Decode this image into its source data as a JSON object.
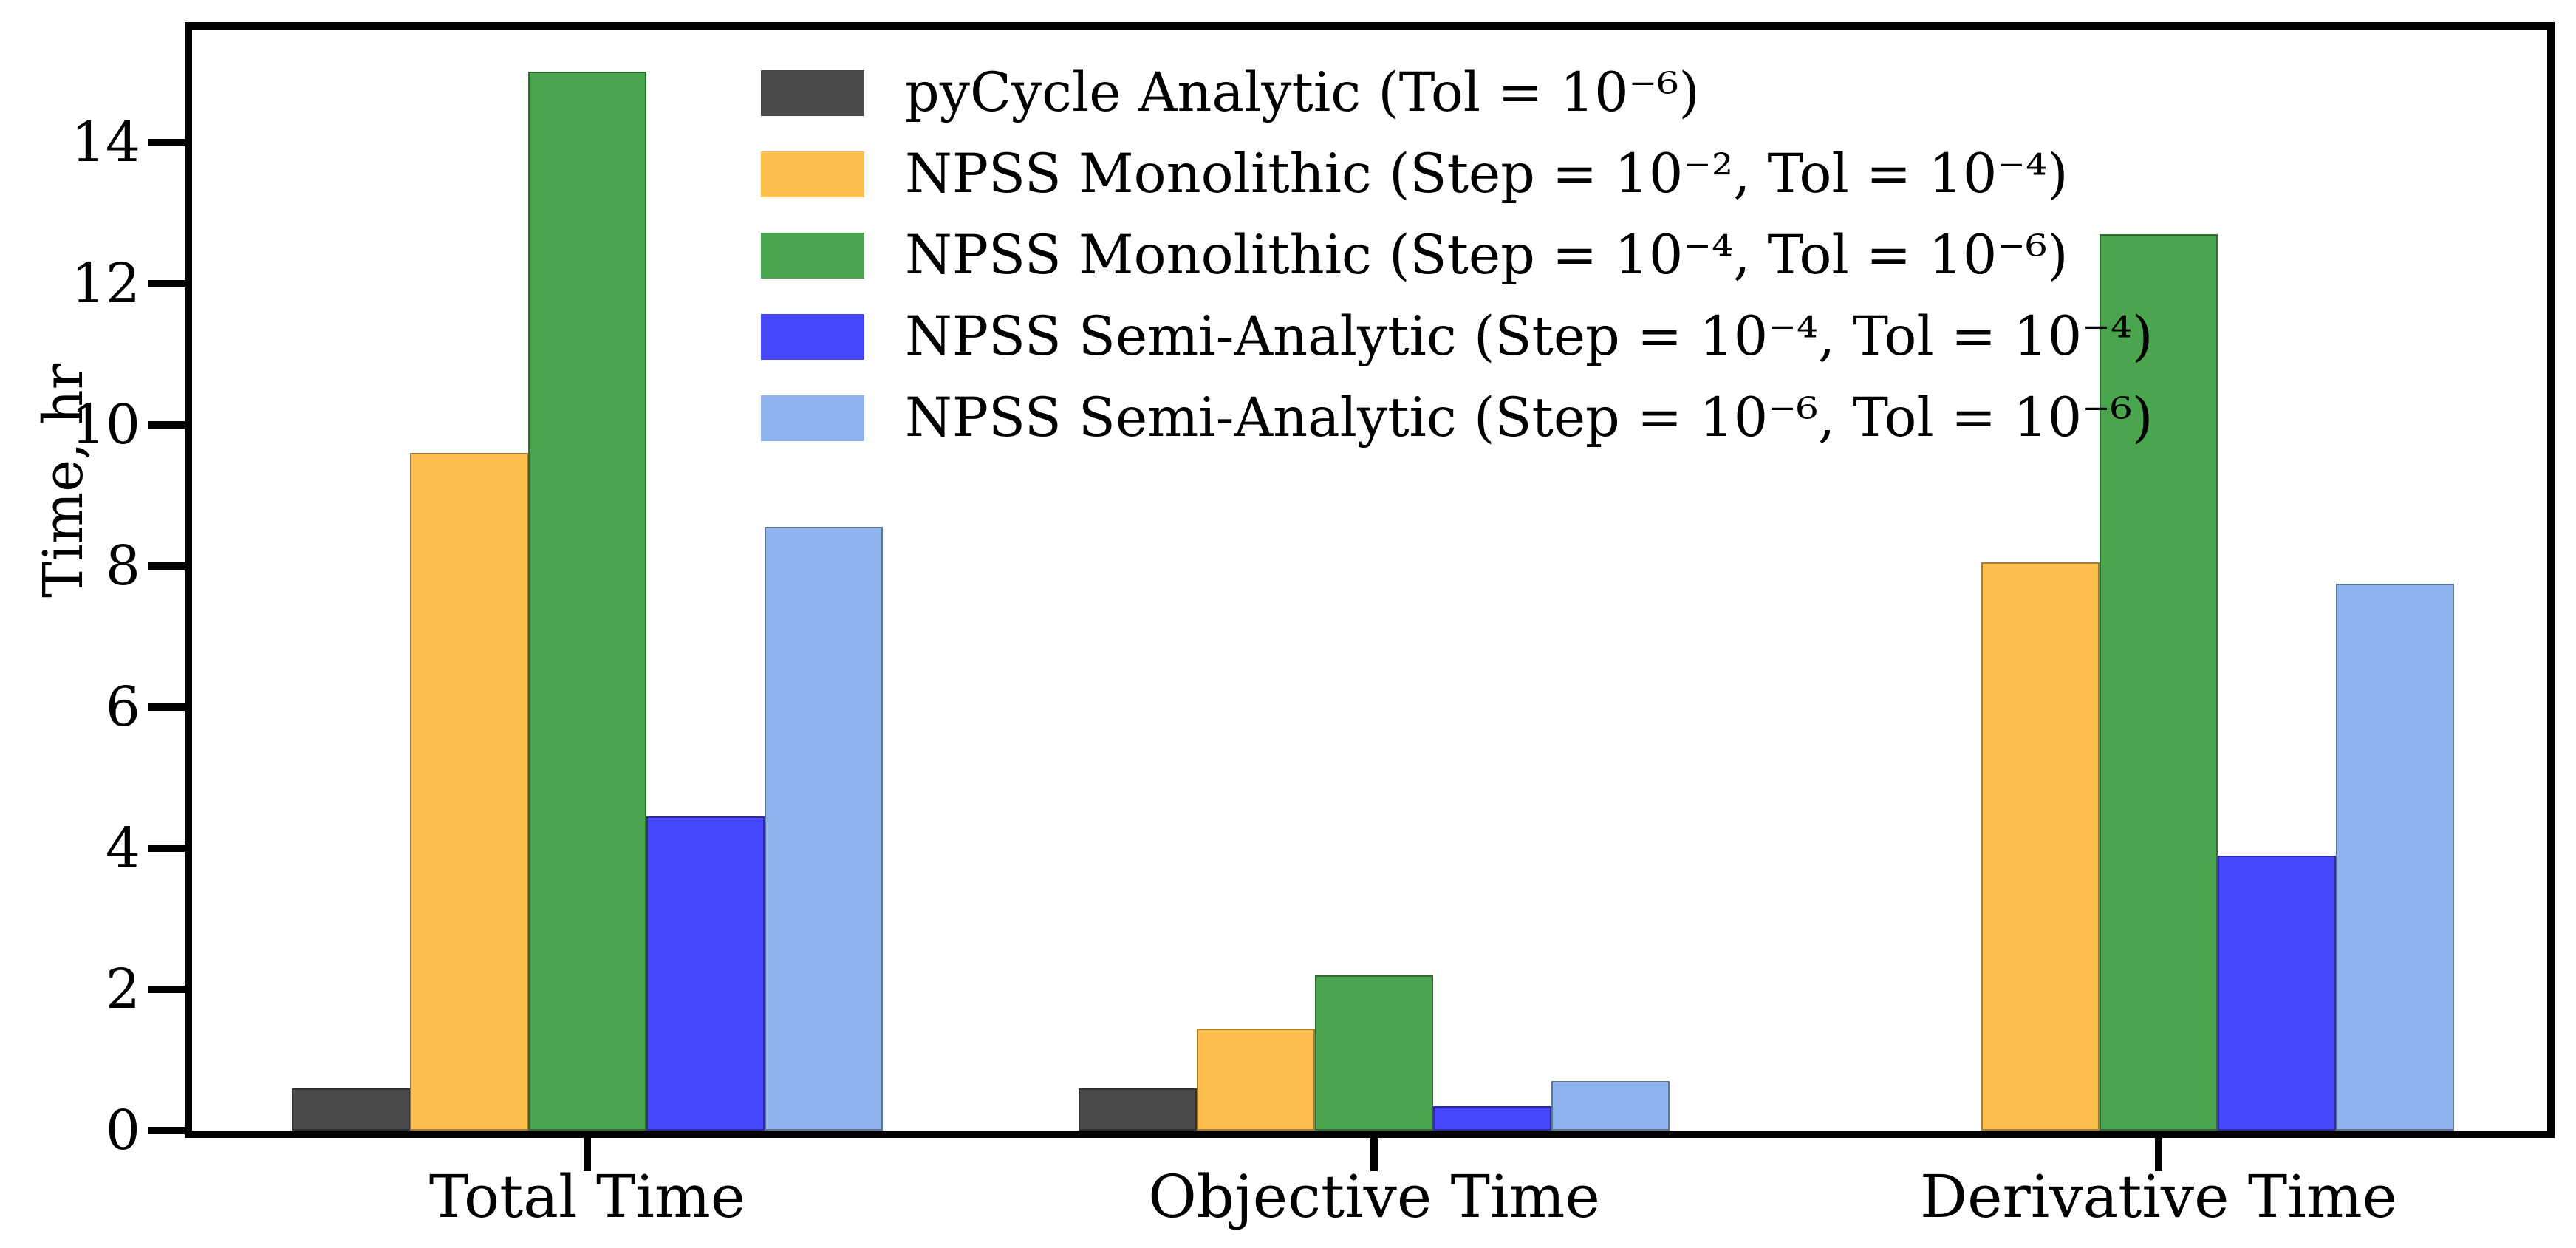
{
  "figure": {
    "background": "#ffffff",
    "text_color": "#000000"
  },
  "chart_data": {
    "type": "bar",
    "title": "",
    "xlabel": "",
    "ylabel": "Time, hr",
    "categories": [
      "Total Time",
      "Objective Time",
      "Derivative Time"
    ],
    "series": [
      {
        "name": "pyCycle Analytic (Tol = 10⁻⁶)",
        "color": "#4a4a4a",
        "values": [
          0.6,
          0.6,
          0
        ]
      },
      {
        "name": "NPSS Monolithic (Step = 10⁻², Tol = 10⁻⁴)",
        "color": "#fdbf4d",
        "values": [
          9.6,
          1.45,
          8.05
        ]
      },
      {
        "name": "NPSS Monolithic (Step = 10⁻⁴, Tol = 10⁻⁶)",
        "color": "#4aa54e",
        "values": [
          15.0,
          2.2,
          12.7
        ]
      },
      {
        "name": "NPSS Semi-Analytic (Step = 10⁻⁴, Tol = 10⁻⁴)",
        "color": "#4646fa",
        "values": [
          4.45,
          0.35,
          3.9
        ]
      },
      {
        "name": "NPSS Semi-Analytic (Step = 10⁻⁶, Tol = 10⁻⁶)",
        "color": "#8fb3ec",
        "values": [
          8.55,
          0.7,
          7.75
        ]
      }
    ],
    "ylim": [
      0,
      15.6
    ],
    "yticks": [
      0,
      2,
      4,
      6,
      8,
      10,
      12,
      14
    ],
    "grid": false,
    "legend_position": "upper-center-inside",
    "legend_frame": false
  }
}
